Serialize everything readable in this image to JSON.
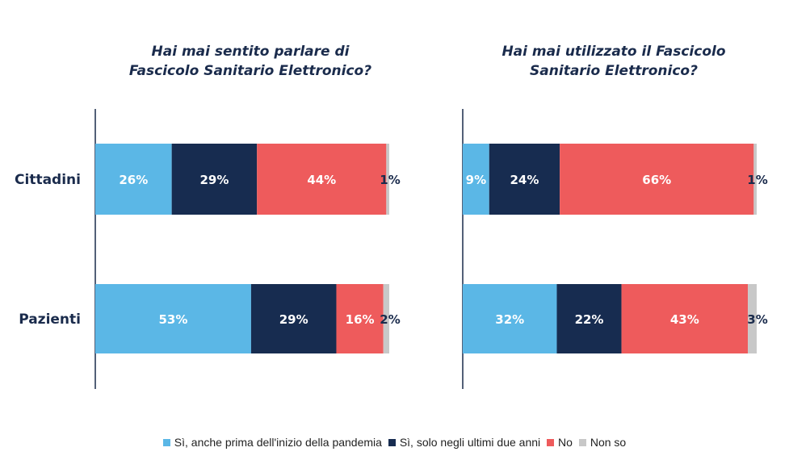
{
  "legend": [
    {
      "label": "Sì, anche prima dell'inizio della pandemia",
      "color": "#5bb7e6"
    },
    {
      "label": "Sì, solo negli ultimi due anni",
      "color": "#172c50"
    },
    {
      "label": "No",
      "color": "#ee5b5c"
    },
    {
      "label": "Non so",
      "color": "#c8c8c8"
    }
  ],
  "chart_data": [
    {
      "type": "bar",
      "orientation": "horizontal",
      "stacked": true,
      "title": "Hai mai sentito parlare di\nFascicolo Sanitario Elettronico?",
      "categories": [
        "Cittadini",
        "Pazienti"
      ],
      "series": [
        {
          "name": "Sì, anche prima dell'inizio della pandemia",
          "values": [
            26,
            53
          ],
          "color": "#5bb7e6"
        },
        {
          "name": "Sì, solo negli ultimi due anni",
          "values": [
            29,
            29
          ],
          "color": "#172c50"
        },
        {
          "name": "No",
          "values": [
            44,
            16
          ],
          "color": "#ee5b5c"
        },
        {
          "name": "Non so",
          "values": [
            1,
            2
          ],
          "color": "#c8c8c8"
        }
      ],
      "value_suffix": "%",
      "xlim": [
        0,
        100
      ]
    },
    {
      "type": "bar",
      "orientation": "horizontal",
      "stacked": true,
      "title": "Hai mai utilizzato il Fascicolo\nSanitario Elettronico?",
      "categories": [
        "Cittadini",
        "Pazienti"
      ],
      "series": [
        {
          "name": "Sì, anche prima dell'inizio della pandemia",
          "values": [
            9,
            32
          ],
          "color": "#5bb7e6"
        },
        {
          "name": "Sì, solo negli ultimi due anni",
          "values": [
            24,
            22
          ],
          "color": "#172c50"
        },
        {
          "name": "No",
          "values": [
            66,
            43
          ],
          "color": "#ee5b5c"
        },
        {
          "name": "Non so",
          "values": [
            1,
            3
          ],
          "color": "#c8c8c8"
        }
      ],
      "value_suffix": "%",
      "xlim": [
        0,
        100
      ]
    }
  ]
}
